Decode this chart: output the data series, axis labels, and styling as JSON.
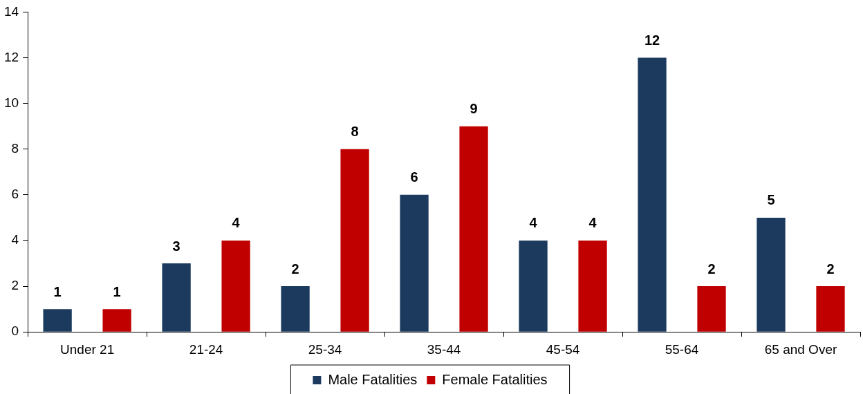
{
  "chart_data": {
    "type": "bar",
    "categories": [
      "Under 21",
      "21-24",
      "25-34",
      "35-44",
      "45-54",
      "55-64",
      "65 and Over"
    ],
    "series": [
      {
        "name": "Male Fatalities",
        "color": "#1b3a5e",
        "values": [
          1,
          3,
          2,
          6,
          4,
          12,
          5
        ]
      },
      {
        "name": "Female Fatalities",
        "color": "#c00000",
        "values": [
          1,
          4,
          8,
          9,
          4,
          2,
          2
        ]
      }
    ],
    "ylim": [
      0,
      14
    ],
    "yticks": [
      0,
      2,
      4,
      6,
      8,
      10,
      12,
      14
    ],
    "grid": false,
    "legend": "bottom",
    "data_labels": true
  }
}
